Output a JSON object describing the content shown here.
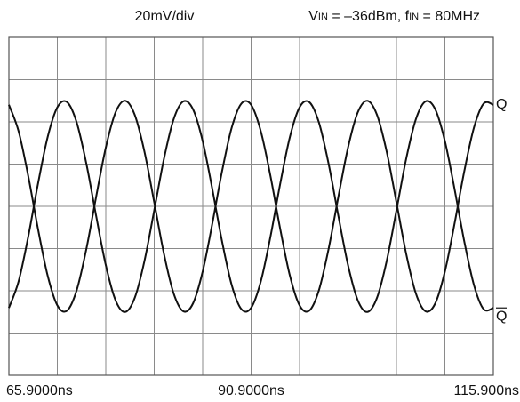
{
  "chart_data": {
    "type": "line",
    "annotations": [
      "20mV/div"
    ],
    "subtitle": [
      {
        "text": "V",
        "sub": false
      },
      {
        "text": "IN",
        "sub": true
      },
      {
        "text": " = –36dBm, f",
        "sub": false
      },
      {
        "text": "IN",
        "sub": true
      },
      {
        "text": " = 80MHz",
        "sub": false
      }
    ],
    "xlim": [
      65.9,
      115.9
    ],
    "ylim": [
      -80,
      80
    ],
    "xticks": [
      {
        "value": 65.9,
        "label": "65.9000ns"
      },
      {
        "value": 90.9,
        "label": "90.9000ns"
      },
      {
        "value": 115.9,
        "label": "115.900ns"
      }
    ],
    "xgrid": [
      65.9,
      70.9,
      75.9,
      80.9,
      85.9,
      90.9,
      95.9,
      100.9,
      105.9,
      110.9,
      115.9
    ],
    "ygrid": [
      -80,
      -60,
      -40,
      -20,
      0,
      20,
      40,
      60,
      80
    ],
    "grid": true,
    "x": [
      65.9,
      66.9,
      67.9,
      68.9,
      69.9,
      70.9,
      71.9,
      72.9,
      73.9,
      74.9,
      75.9,
      76.9,
      77.9,
      78.9,
      79.9,
      80.9,
      81.9,
      82.9,
      83.9,
      84.9,
      85.9,
      86.9,
      87.9,
      88.9,
      89.9,
      90.9,
      91.9,
      92.9,
      93.9,
      94.9,
      95.9,
      96.9,
      97.9,
      98.9,
      99.9,
      100.9,
      101.9,
      102.9,
      103.9,
      104.9,
      105.9,
      106.9,
      107.9,
      108.9,
      109.9,
      110.9,
      111.9,
      112.9,
      113.9,
      114.9,
      115.9
    ],
    "series": [
      {
        "name": "Q",
        "overline": false,
        "color": "#111111",
        "values": [
          48.1,
          35.6,
          14.3,
          -10.6,
          -32.8,
          -46.9,
          -49.4,
          -39.7,
          -20.1,
          4.4,
          27.8,
          44.4,
          50.0,
          43.2,
          25.7,
          1.9,
          -22.4,
          -41.2,
          -49.7,
          -46.0,
          -30.9,
          -8.1,
          16.6,
          37.3,
          48.7,
          48.1,
          35.6,
          14.3,
          -10.6,
          -32.8,
          -46.9,
          -49.4,
          -39.7,
          -20.1,
          4.4,
          27.8,
          44.4,
          50.0,
          43.2,
          25.7,
          1.9,
          -22.4,
          -41.2,
          -49.7,
          -46.0,
          -30.9,
          -8.1,
          16.6,
          37.3,
          48.7,
          48.1
        ]
      },
      {
        "name": "Q",
        "overline": true,
        "color": "#111111",
        "values": [
          -48.1,
          -35.6,
          -14.3,
          10.6,
          32.8,
          46.9,
          49.4,
          39.7,
          20.1,
          -4.4,
          -27.8,
          -44.4,
          -50.0,
          -43.2,
          -25.7,
          -1.9,
          22.4,
          41.2,
          49.7,
          46.0,
          30.9,
          8.1,
          -16.6,
          -37.3,
          -48.7,
          -48.1,
          -35.6,
          -14.3,
          10.6,
          32.8,
          46.9,
          49.4,
          39.7,
          20.1,
          -4.4,
          -27.8,
          -44.4,
          -50.0,
          -43.2,
          -25.7,
          -1.9,
          22.4,
          41.2,
          49.7,
          46.0,
          30.9,
          8.1,
          -16.6,
          -37.3,
          -48.7,
          -48.1
        ]
      }
    ]
  }
}
